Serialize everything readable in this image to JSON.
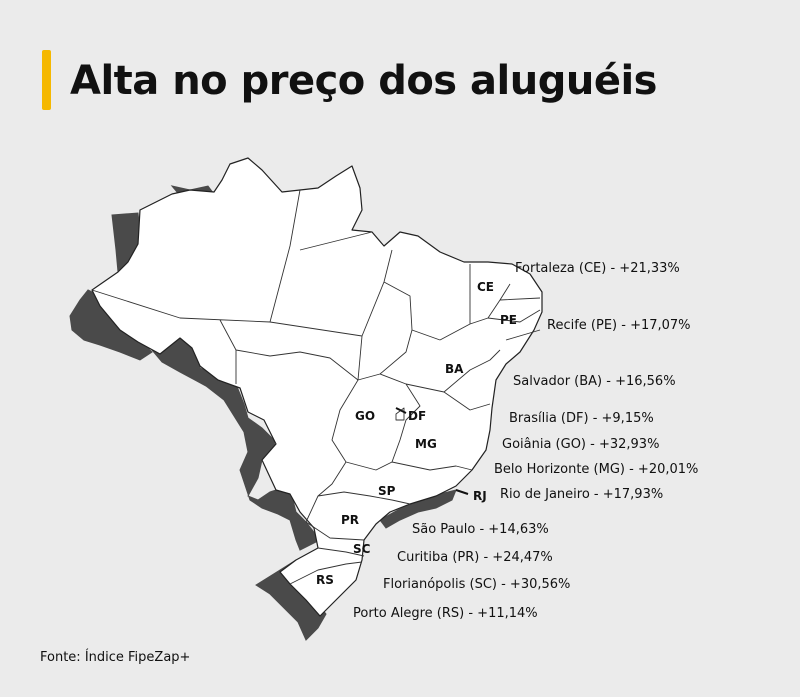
{
  "title": "Alta no preço dos aluguéis",
  "accent_color": "#f5b800",
  "states": {
    "CE": "CE",
    "PE": "PE",
    "BA": "BA",
    "GO": "GO",
    "DF": "DF",
    "MG": "MG",
    "SP": "SP",
    "RJ": "RJ",
    "PR": "PR",
    "SC": "SC",
    "RS": "RS"
  },
  "cities": [
    {
      "label": "Fortaleza (CE) - +21,33%"
    },
    {
      "label": "Recife (PE) - +17,07%"
    },
    {
      "label": "Salvador (BA) - +16,56%"
    },
    {
      "label": "Brasília (DF) - +9,15%"
    },
    {
      "label": "Goiânia (GO) - +32,93%"
    },
    {
      "label": "Belo Horizonte (MG) - +20,01%"
    },
    {
      "label": "Rio de Janeiro - +17,93%"
    },
    {
      "label": "São Paulo - +14,63%"
    },
    {
      "label": "Curitiba (PR) - +24,47%"
    },
    {
      "label": "Florianópolis (SC) - +30,56%"
    },
    {
      "label": "Porto Alegre (RS) - +11,14%"
    }
  ],
  "source": "Fonte: Índice FipeZap+"
}
